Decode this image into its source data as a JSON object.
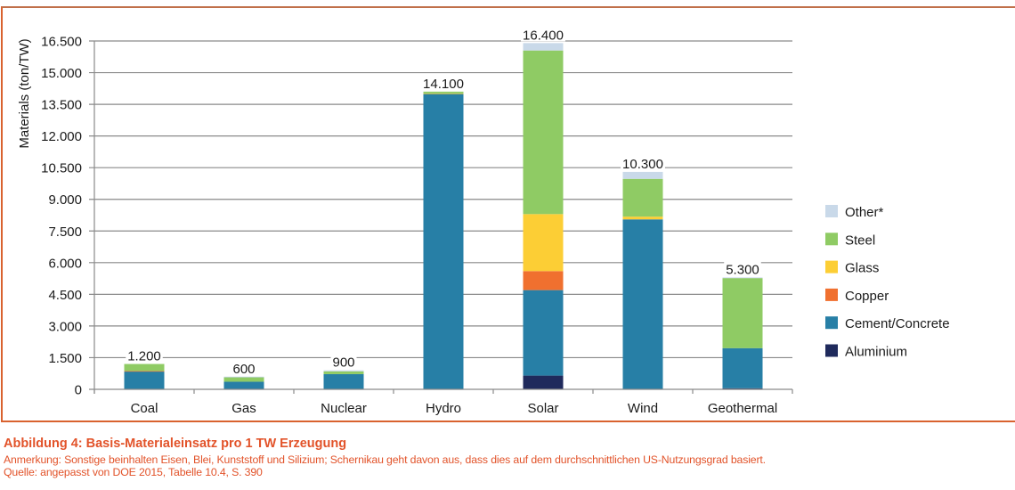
{
  "chart_data": {
    "type": "bar",
    "stacked": true,
    "title": "",
    "xlabel": "",
    "ylabel": "Materials (ton/TW)",
    "ylim": [
      0,
      16500
    ],
    "yticks": [
      0,
      1500,
      3000,
      4500,
      6000,
      7500,
      9000,
      10500,
      12000,
      13500,
      15000,
      16500
    ],
    "ytick_labels": [
      "0",
      "1.500",
      "3.000",
      "4.500",
      "6.000",
      "7.500",
      "9.000",
      "10.500",
      "12.000",
      "13.500",
      "15.000",
      "16.500"
    ],
    "grid": true,
    "legend_position": "right",
    "categories": [
      "Coal",
      "Gas",
      "Nuclear",
      "Hydro",
      "Solar",
      "Wind",
      "Geothermal"
    ],
    "totals": [
      1200,
      600,
      900,
      14100,
      16400,
      10300,
      5300
    ],
    "total_labels": [
      "1.200",
      "600",
      "900",
      "14.100",
      "16.400",
      "10.300",
      "5.300"
    ],
    "series": [
      {
        "name": "Aluminium",
        "color": "#1f2a5c",
        "values": [
          0,
          0,
          0,
          0,
          650,
          0,
          50
        ]
      },
      {
        "name": "Cement/Concrete",
        "color": "#277fa6",
        "values": [
          850,
          360,
          720,
          14000,
          4050,
          8050,
          1900
        ]
      },
      {
        "name": "Copper",
        "color": "#f0702f",
        "values": [
          20,
          0,
          0,
          0,
          900,
          0,
          0
        ]
      },
      {
        "name": "Glass",
        "color": "#fcce35",
        "values": [
          0,
          0,
          0,
          20,
          2700,
          130,
          0
        ]
      },
      {
        "name": "Steel",
        "color": "#8fcb64",
        "values": [
          330,
          220,
          130,
          80,
          7750,
          1790,
          3320
        ]
      },
      {
        "name": "Other*",
        "color": "#c9d9e9",
        "values": [
          0,
          20,
          50,
          0,
          350,
          330,
          30
        ]
      }
    ],
    "legend_order": [
      "Other*",
      "Steel",
      "Glass",
      "Copper",
      "Cement/Concrete",
      "Aluminium"
    ]
  },
  "caption": {
    "title": "Abbildung 4: Basis-Materialeinsatz pro 1 TW Erzeugung",
    "note": "Anmerkung: Sonstige beinhalten Eisen, Blei, Kunststoff und Silizium; Schernikau geht davon aus, dass dies auf dem durchschnittlichen US-Nutzungsgrad basiert.",
    "source": "Quelle: angepasst von DOE 2015, Tabelle 10.4, S. 390"
  }
}
